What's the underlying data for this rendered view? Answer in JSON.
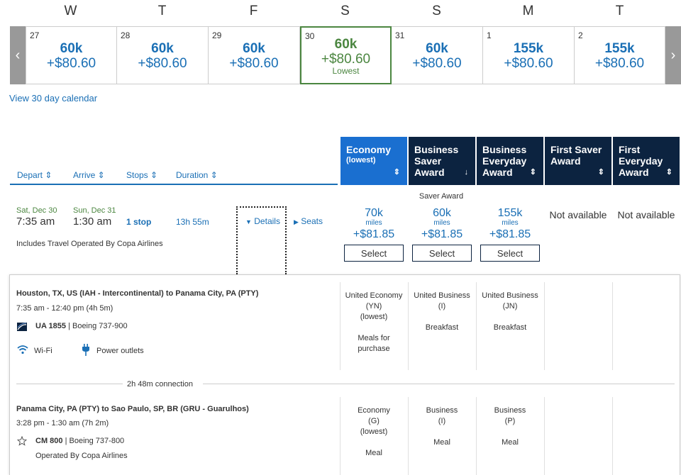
{
  "calendar": {
    "days": [
      {
        "letter": "W",
        "date": "27",
        "miles": "60k",
        "price": "+$80.60"
      },
      {
        "letter": "T",
        "date": "28",
        "miles": "60k",
        "price": "+$80.60"
      },
      {
        "letter": "F",
        "date": "29",
        "miles": "60k",
        "price": "+$80.60"
      },
      {
        "letter": "S",
        "date": "30",
        "miles": "60k",
        "price": "+$80.60",
        "badge": "Lowest"
      },
      {
        "letter": "S",
        "date": "31",
        "miles": "60k",
        "price": "+$80.60"
      },
      {
        "letter": "M",
        "date": "1",
        "miles": "155k",
        "price": "+$80.60"
      },
      {
        "letter": "T",
        "date": "2",
        "miles": "155k",
        "price": "+$80.60"
      }
    ],
    "prev_arrow": "‹",
    "next_arrow": "›",
    "view_30_label": "View 30 day calendar"
  },
  "sort": {
    "depart": "Depart ⇕",
    "arrive": "Arrive ⇕",
    "stops": "Stops ⇕",
    "duration": "Duration ⇕"
  },
  "fare_columns": [
    {
      "title": "Economy",
      "sub": "(lowest)",
      "arrow": "⇕"
    },
    {
      "title": "Business Saver Award",
      "sub": "",
      "arrow": "↓"
    },
    {
      "title": "Business Everyday Award",
      "sub": "",
      "arrow": "⇕"
    },
    {
      "title": "First Saver Award",
      "sub": "",
      "arrow": "⇕"
    },
    {
      "title": "First Everyday Award",
      "sub": "",
      "arrow": "⇕"
    }
  ],
  "flight": {
    "depart_date": "Sat, Dec 30",
    "depart_time": "7:35 am",
    "arrive_date": "Sun, Dec 31",
    "arrive_time": "1:30 am",
    "stops": "1 stop",
    "duration": "13h 55m",
    "details_label": "Details",
    "seats_label": "Seats",
    "includes": "Includes Travel Operated By Copa Airlines",
    "saver_award_label": "Saver Award",
    "fares": [
      {
        "miles": "70k",
        "miles_label": "miles",
        "price": "+$81.85",
        "select": "Select"
      },
      {
        "miles": "60k",
        "miles_label": "miles",
        "price": "+$81.85",
        "select": "Select"
      },
      {
        "miles": "155k",
        "miles_label": "miles",
        "price": "+$81.85",
        "select": "Select"
      }
    ],
    "not_available": [
      "Not available",
      "Not available"
    ]
  },
  "segments": [
    {
      "route": "Houston, TX, US (IAH - Intercontinental) to Panama City, PA (PTY)",
      "times": "7:35 am - 12:40 pm (4h 5m)",
      "flight_no": "UA 1855",
      "aircraft": " | Boeing 737-900",
      "amenities": [
        "Wi-Fi",
        "Power outlets"
      ],
      "cabins": [
        {
          "name": "United Economy",
          "code": "(YN)",
          "note": "(lowest)",
          "meal": "Meals for purchase"
        },
        {
          "name": "United Business",
          "code": "(I)",
          "note": "",
          "meal": "Breakfast"
        },
        {
          "name": "United Business",
          "code": "(JN)",
          "note": "",
          "meal": "Breakfast"
        }
      ]
    },
    {
      "route": "Panama City, PA (PTY) to Sao Paulo, SP, BR (GRU - Guarulhos)",
      "times": "3:28 pm - 1:30 am (7h 2m)",
      "flight_no": "CM 800",
      "aircraft": " | Boeing 737-800",
      "operated_by": "Operated By Copa Airlines",
      "cabins": [
        {
          "name": "Economy",
          "code": "(G)",
          "note": "(lowest)",
          "meal": "Meal"
        },
        {
          "name": "Business",
          "code": "(I)",
          "note": "",
          "meal": "Meal"
        },
        {
          "name": "Business",
          "code": "(P)",
          "note": "",
          "meal": "Meal"
        }
      ]
    }
  ],
  "connection": "2h 48m connection",
  "colors": {
    "link_blue": "#1a6fb5",
    "header_navy": "#0c2340",
    "header_active": "#1a6fd0",
    "lowest_green": "#4b8640"
  }
}
